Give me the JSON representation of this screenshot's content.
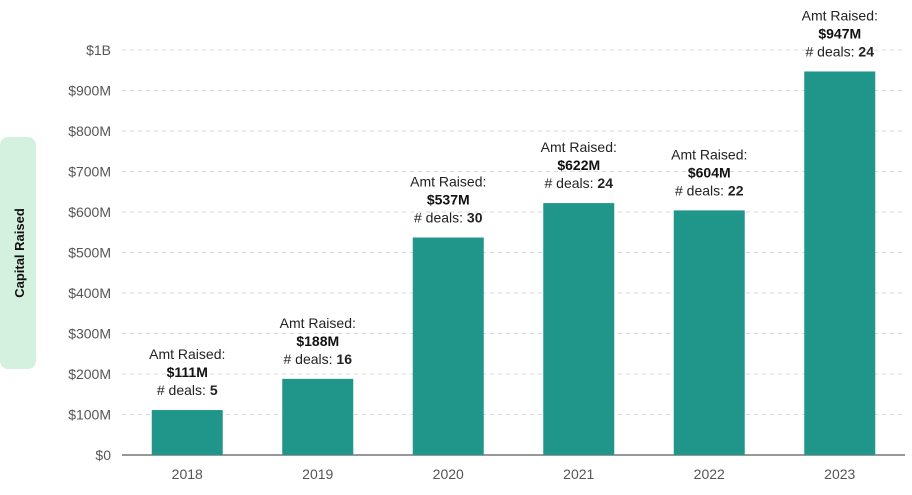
{
  "chart_data": {
    "type": "bar",
    "title": "",
    "xlabel": "",
    "ylabel": "Capital Raised",
    "ylim": [
      0,
      1000
    ],
    "yticks": [
      {
        "value": 0,
        "label": "$0"
      },
      {
        "value": 100,
        "label": "$100M"
      },
      {
        "value": 200,
        "label": "$200M"
      },
      {
        "value": 300,
        "label": "$300M"
      },
      {
        "value": 400,
        "label": "$400M"
      },
      {
        "value": 500,
        "label": "$500M"
      },
      {
        "value": 600,
        "label": "$600M"
      },
      {
        "value": 700,
        "label": "$700M"
      },
      {
        "value": 800,
        "label": "$800M"
      },
      {
        "value": 900,
        "label": "$900M"
      },
      {
        "value": 1000,
        "label": "$1B"
      }
    ],
    "categories": [
      "2018",
      "2019",
      "2020",
      "2021",
      "2022",
      "2023"
    ],
    "values": [
      111,
      188,
      537,
      622,
      604,
      947
    ],
    "deals": [
      5,
      16,
      30,
      24,
      22,
      24
    ],
    "amount_labels": [
      "$111M",
      "$188M",
      "$537M",
      "$622M",
      "$604M",
      "$947M"
    ],
    "label_prefix": "Amt Raised:",
    "deals_prefix": "# deals: ",
    "grid": true,
    "colors": {
      "bar": "#20968b",
      "ylabel_bg": "#d4f0df",
      "grid": "#d9d9d9",
      "axis": "#777777"
    }
  }
}
